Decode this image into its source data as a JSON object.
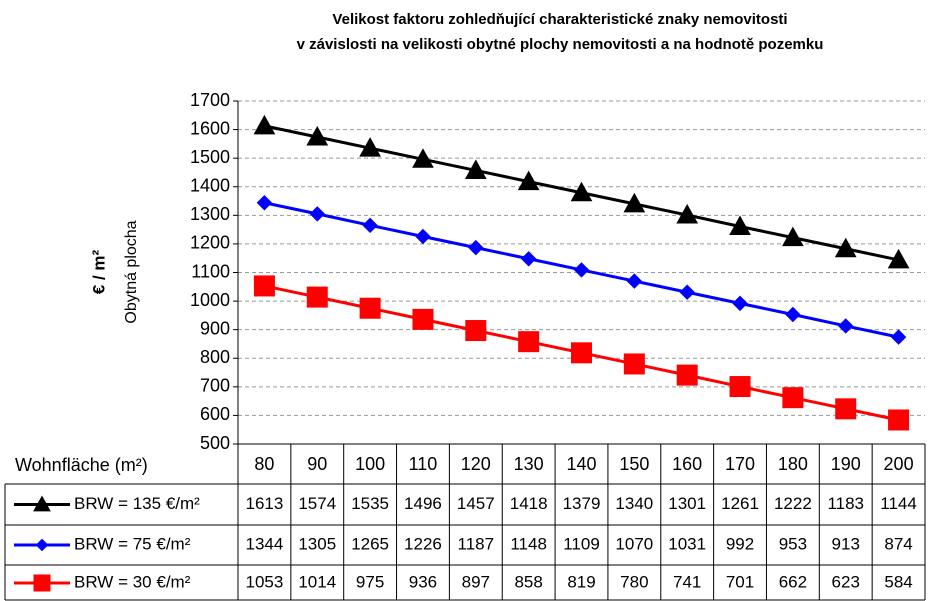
{
  "chart_data": {
    "type": "line",
    "title_lines": [
      "Velikost faktoru zohledňující charakteristické znaky nemovitosti",
      "v závislosti na velikosti obytné plochy nemovitosti a na hodnotě pozemku"
    ],
    "y_label": "€ / m²",
    "y_sublabel": "Obytná plocha",
    "x_label": "Wohnfläche (m²)",
    "categories": [
      80,
      90,
      100,
      110,
      120,
      130,
      140,
      150,
      160,
      170,
      180,
      190,
      200
    ],
    "series": [
      {
        "name": "BRW = 135 €/m²",
        "color": "#000000",
        "marker": "triangle",
        "values": [
          1613,
          1574,
          1535,
          1496,
          1457,
          1418,
          1379,
          1340,
          1301,
          1261,
          1222,
          1183,
          1144
        ]
      },
      {
        "name": "BRW = 75 €/m²",
        "color": "#0000ff",
        "marker": "diamond",
        "values": [
          1344,
          1305,
          1265,
          1226,
          1187,
          1148,
          1109,
          1070,
          1031,
          992,
          953,
          913,
          874
        ]
      },
      {
        "name": "BRW = 30 €/m²",
        "color": "#ff0000",
        "marker": "square",
        "values": [
          1053,
          1014,
          975,
          936,
          897,
          858,
          819,
          780,
          741,
          701,
          662,
          623,
          584
        ]
      }
    ],
    "ylim": [
      500,
      1700
    ],
    "yticks": [
      500,
      600,
      700,
      800,
      900,
      1000,
      1100,
      1200,
      1300,
      1400,
      1500,
      1600,
      1700
    ],
    "grid": true
  }
}
